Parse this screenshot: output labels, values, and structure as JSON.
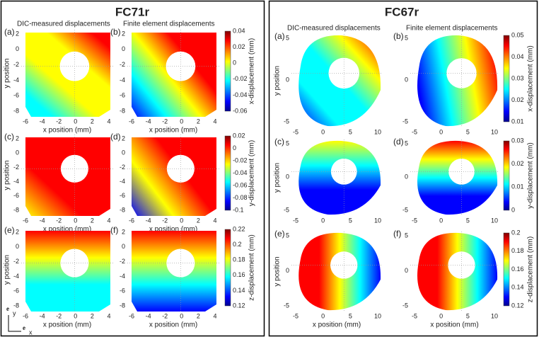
{
  "sides": [
    {
      "title": "FC71r",
      "panels": [
        {
          "label": "(a)",
          "caption": "DIC-measured displacements",
          "xlabel": "x position (mm)",
          "ylabel": "y position",
          "xticks": [
            "-6",
            "-4",
            "-2",
            "0",
            "2",
            "4"
          ],
          "yticks": [
            "2",
            "0",
            "-2",
            "-4",
            "-6",
            "-8"
          ]
        },
        {
          "label": "(b)",
          "caption": "Finite element displacements",
          "xlabel": "x position (mm)",
          "xticks": [
            "-6",
            "-4",
            "-2",
            "0",
            "2",
            "4"
          ],
          "yticks": [
            "2",
            "0",
            "-2",
            "-4",
            "-6",
            "-8"
          ]
        },
        {
          "label": "(c)",
          "xlabel": "x position (mm)",
          "ylabel": "y position",
          "xticks": [
            "-6",
            "-4",
            "-2",
            "0",
            "2",
            "4"
          ],
          "yticks": [
            "2",
            "0",
            "-2",
            "-4",
            "-6",
            "-8"
          ]
        },
        {
          "label": "(d)",
          "xlabel": "x position (mm)",
          "xticks": [
            "-6",
            "-4",
            "-2",
            "0",
            "2",
            "4"
          ],
          "yticks": [
            "2",
            "0",
            "-2",
            "-4",
            "-6",
            "-8"
          ]
        },
        {
          "label": "(e)",
          "xlabel": "x position (mm)",
          "ylabel": "y position",
          "xticks": [
            "-6",
            "-4",
            "-2",
            "0",
            "2",
            "4"
          ],
          "yticks": [
            "2",
            "0",
            "-2",
            "-4",
            "-6",
            "-8"
          ]
        },
        {
          "label": "(f)",
          "xlabel": "x position (mm)",
          "xticks": [
            "-6",
            "-4",
            "-2",
            "0",
            "2",
            "4"
          ],
          "yticks": [
            "2",
            "0",
            "-2",
            "-4",
            "-6",
            "-8"
          ]
        }
      ],
      "colorbars": [
        {
          "label": "x-displacement (mm)",
          "ticks": [
            "0.04",
            "0.02",
            "0",
            "-0.02",
            "-0.04",
            "-0.06"
          ]
        },
        {
          "label": "y-displacement (mm)",
          "ticks": [
            "0.02",
            "0",
            "-0.02",
            "-0.04",
            "-0.06",
            "-0.08",
            "-0.1"
          ]
        },
        {
          "label": "z-displacement (mm)",
          "ticks": [
            "0.22",
            "0.2",
            "0.18",
            "0.16",
            "0.14",
            "0.12"
          ]
        }
      ]
    },
    {
      "title": "FC67r",
      "panels": [
        {
          "label": "(a)",
          "caption": "DIC-measured displacements",
          "ylabel": "y position",
          "xticks": [
            "-5",
            "0",
            "5",
            "10"
          ],
          "yticks": [
            "5",
            "0",
            "-5"
          ]
        },
        {
          "label": "(b)",
          "caption": "Finite element displacements",
          "xticks": [
            "-5",
            "0",
            "5",
            "10"
          ],
          "yticks": [
            "5",
            "0",
            "-5"
          ]
        },
        {
          "label": "(c)",
          "ylabel": "y position",
          "xticks": [
            "-5",
            "0",
            "5",
            "10"
          ],
          "yticks": [
            "5",
            "0",
            "-5"
          ]
        },
        {
          "label": "(d)",
          "xticks": [
            "-5",
            "0",
            "5",
            "10"
          ],
          "yticks": [
            "5",
            "0",
            "-5"
          ]
        },
        {
          "label": "(e)",
          "xlabel": "x position (mm)",
          "ylabel": "y position",
          "xticks": [
            "-5",
            "0",
            "5",
            "10"
          ],
          "yticks": [
            "5",
            "0",
            "-5"
          ]
        },
        {
          "label": "(f)",
          "xlabel": "x position (mm)",
          "xticks": [
            "-5",
            "0",
            "5",
            "10"
          ],
          "yticks": [
            "5",
            "0",
            "-5"
          ]
        }
      ],
      "colorbars": [
        {
          "label": "x-displacement (mm)",
          "ticks": [
            "0.05",
            "0.04",
            "0.03",
            "0.02",
            "0.01"
          ]
        },
        {
          "label": "y-displacement (mm)",
          "ticks": [
            "0.03",
            "0.02",
            "0.01",
            "0"
          ]
        },
        {
          "label": "z-displacement (mm)",
          "ticks": [
            "0.2",
            "0.18",
            "0.16",
            "0.14",
            "0.12"
          ]
        }
      ]
    }
  ],
  "axes_icon": {
    "y": "e",
    "y_sub": "y",
    "x": "e",
    "x_sub": "x"
  }
}
